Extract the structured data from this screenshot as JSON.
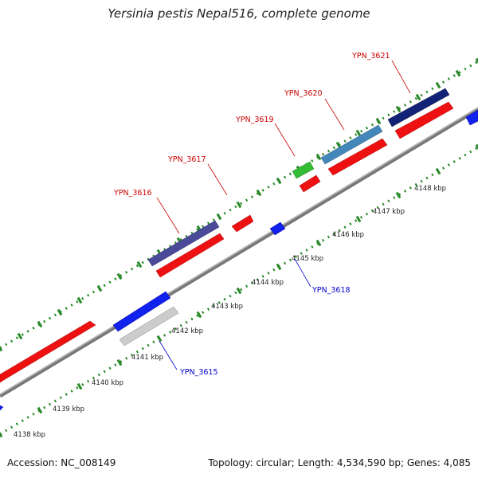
{
  "title": "Yersinia pestis Nepal516, complete genome",
  "footer": {
    "accession": "Accession: NC_008149",
    "summary": "Topology: circular; Length: 4,534,590 bp; Genes: 4,085"
  },
  "axis": {
    "ticks": [
      "4138 kbp",
      "4139 kbp",
      "4140 kbp",
      "4141 kbp",
      "4142 kbp",
      "4143 kbp",
      "4144 kbp",
      "4145 kbp",
      "4146 kbp",
      "4147 kbp",
      "4148 kbp"
    ]
  },
  "genes": [
    {
      "name": "YPN_3615",
      "strand": "reverse",
      "color": "#0000cc"
    },
    {
      "name": "YPN_3616",
      "strand": "forward",
      "color": "#cc0000"
    },
    {
      "name": "YPN_3617",
      "strand": "forward",
      "color": "#cc0000"
    },
    {
      "name": "YPN_3618",
      "strand": "reverse",
      "color": "#0000cc"
    },
    {
      "name": "YPN_3619",
      "strand": "forward",
      "color": "#cc0000"
    },
    {
      "name": "YPN_3620",
      "strand": "forward",
      "color": "#cc0000"
    },
    {
      "name": "YPN_3621",
      "strand": "forward",
      "color": "#cc0000"
    }
  ],
  "colors": {
    "cds_forward": "#ee1111",
    "cds_reverse": "#1111ee",
    "backbone": "#888888",
    "dotted_ruler": "#228822",
    "label_forward": "#cc0000",
    "label_reverse": "#0000cc"
  }
}
